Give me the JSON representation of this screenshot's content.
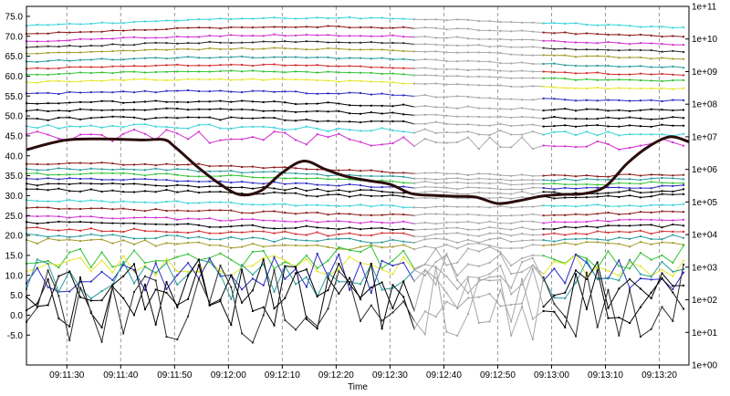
{
  "chart_data": {
    "type": "line",
    "xlabel": "Time",
    "x_ticks": [
      "09:11:30",
      "09:11:40",
      "09:11:50",
      "09:12:00",
      "09:12:10",
      "09:12:20",
      "09:12:30",
      "09:12:40",
      "09:12:50",
      "09:13:00",
      "09:13:10",
      "09:13:20"
    ],
    "x_tick_seconds": [
      30,
      40,
      50,
      60,
      70,
      80,
      90,
      100,
      110,
      120,
      130,
      140
    ],
    "x_range_seconds": [
      22.5,
      145.5
    ],
    "ylim_left": [
      -12.5,
      77.5
    ],
    "y_ticks_left": [
      "-5.0",
      "0.0",
      "5.0",
      "10.0",
      "15.0",
      "20.0",
      "25.0",
      "30.0",
      "35.0",
      "40.0",
      "45.0",
      "50.0",
      "55.0",
      "60.0",
      "65.0",
      "70.0",
      "75.0"
    ],
    "y_tick_values_left": [
      -5,
      0,
      5,
      10,
      15,
      20,
      25,
      30,
      35,
      40,
      45,
      50,
      55,
      60,
      65,
      70,
      75
    ],
    "y_ticks_right": [
      "1e+00",
      "1e+01",
      "1e+02",
      "1e+03",
      "1e+04",
      "1e+05",
      "1e+06",
      "1e+07",
      "1e+08",
      "1e+09",
      "1e+10",
      "1e+11"
    ],
    "right_axis_scale": "log",
    "ylim_right": [
      1,
      100000000000
    ],
    "grid": "vertical dashed",
    "gap_window_seconds": [
      93,
      117
    ],
    "gap_color": "#a8a8a8",
    "log_series": {
      "color": "#2b0d0d",
      "x": [
        22.5,
        30,
        38,
        44,
        48,
        50,
        54,
        58,
        62,
        66,
        70,
        74,
        78,
        82,
        86,
        90,
        94,
        98,
        102,
        106,
        110,
        114,
        118,
        122,
        126,
        130,
        134,
        138,
        142,
        145.5
      ],
      "values": [
        4000000,
        8000000,
        8500000,
        8000000,
        8200000,
        5000000,
        1300000,
        400000,
        170000,
        220000,
        800000,
        1800000,
        1000000,
        600000,
        450000,
        350000,
        180000,
        160000,
        150000,
        140000,
        90000,
        110000,
        150000,
        170000,
        180000,
        300000,
        1500000,
        5000000,
        10000000,
        7000000
      ]
    },
    "band_series": [
      {
        "color": "#39d3d9",
        "base": 73.2,
        "amp": 1.4,
        "phase": 0.2,
        "noise": 0.2
      },
      {
        "color": "#8b1a1a",
        "base": 71.0,
        "amp": 1.4,
        "phase": 0.3,
        "noise": 0.2
      },
      {
        "color": "#d12fd1",
        "base": 69.0,
        "amp": 1.3,
        "phase": 0.4,
        "noise": 0.2
      },
      {
        "color": "#2b2b2b",
        "base": 67.3,
        "amp": 1.3,
        "phase": 0.5,
        "noise": 0.2
      },
      {
        "color": "#a39a2b",
        "base": 65.6,
        "amp": 1.3,
        "phase": 0.6,
        "noise": 0.2
      },
      {
        "color": "#2b9a9a",
        "base": 63.5,
        "amp": 1.3,
        "phase": 0.7,
        "noise": 0.2
      },
      {
        "color": "#d12b2b",
        "base": 61.6,
        "amp": 1.2,
        "phase": 0.8,
        "noise": 0.2
      },
      {
        "color": "#34c234",
        "base": 60.0,
        "amp": 1.2,
        "phase": 0.9,
        "noise": 0.2
      },
      {
        "color": "#e6e62b",
        "base": 58.0,
        "amp": 1.2,
        "phase": 1.0,
        "noise": 0.2
      },
      {
        "color": "#2b2bc2",
        "base": 55.0,
        "amp": 1.2,
        "phase": 1.1,
        "noise": 0.25
      },
      {
        "color": "#000000",
        "base": 52.5,
        "amp": 1.1,
        "phase": 1.2,
        "noise": 0.3
      },
      {
        "color": "#000000",
        "base": 50.5,
        "amp": 1.1,
        "phase": 1.3,
        "noise": 0.3
      },
      {
        "color": "#000000",
        "base": 48.5,
        "amp": 1.0,
        "phase": 1.4,
        "noise": 0.4
      },
      {
        "color": "#39d3d9",
        "base": 46.5,
        "amp": 1.0,
        "phase": 1.5,
        "noise": 0.6
      },
      {
        "color": "#d12fd1",
        "base": 44.0,
        "amp": 1.0,
        "phase": 1.6,
        "noise": 1.6
      },
      {
        "color": "#8b1a1a",
        "base": 36.5,
        "amp": 1.5,
        "phase": 1.7,
        "noise": 0.3
      },
      {
        "color": "#2b9a9a",
        "base": 35.3,
        "amp": 1.4,
        "phase": 1.8,
        "noise": 0.3
      },
      {
        "color": "#34c234",
        "base": 34.2,
        "amp": 1.3,
        "phase": 1.9,
        "noise": 0.3
      },
      {
        "color": "#2b2bc2",
        "base": 33.0,
        "amp": 1.2,
        "phase": 2.0,
        "noise": 0.3
      },
      {
        "color": "#000000",
        "base": 31.8,
        "amp": 1.1,
        "phase": 2.1,
        "noise": 0.4
      },
      {
        "color": "#000000",
        "base": 30.5,
        "amp": 1.0,
        "phase": 2.2,
        "noise": 0.4
      },
      {
        "color": "#39d3d9",
        "base": 28.0,
        "amp": 0.8,
        "phase": 2.3,
        "noise": 0.3
      },
      {
        "color": "#8b1a1a",
        "base": 26.0,
        "amp": 0.8,
        "phase": 2.4,
        "noise": 0.3
      },
      {
        "color": "#d12fd1",
        "base": 24.0,
        "amp": 0.8,
        "phase": 2.5,
        "noise": 0.3
      },
      {
        "color": "#000000",
        "base": 22.5,
        "amp": 0.8,
        "phase": 2.6,
        "noise": 0.4
      },
      {
        "color": "#d12b2b",
        "base": 21.0,
        "amp": 0.8,
        "phase": 2.7,
        "noise": 0.5
      },
      {
        "color": "#2b9a9a",
        "base": 19.5,
        "amp": 0.8,
        "phase": 2.8,
        "noise": 0.6
      },
      {
        "color": "#a39a2b",
        "base": 18.0,
        "amp": 0.8,
        "phase": 2.9,
        "noise": 0.8
      }
    ],
    "noisy_series": [
      {
        "color": "#34c234",
        "base": 14.5,
        "spread": 3.0,
        "seed": 11
      },
      {
        "color": "#e6e62b",
        "base": 12.5,
        "spread": 3.0,
        "seed": 23
      },
      {
        "color": "#2b2bc2",
        "base": 10.5,
        "spread": 5.0,
        "seed": 37
      },
      {
        "color": "#2b9a9a",
        "base": 9.0,
        "spread": 5.0,
        "seed": 41
      },
      {
        "color": "#000000",
        "base": 8.0,
        "spread": 7.0,
        "seed": 53
      },
      {
        "color": "#000000",
        "base": 5.5,
        "spread": 9.0,
        "seed": 67
      },
      {
        "color": "#2b2b2b",
        "base": 3.0,
        "spread": 10.0,
        "seed": 79
      }
    ]
  }
}
